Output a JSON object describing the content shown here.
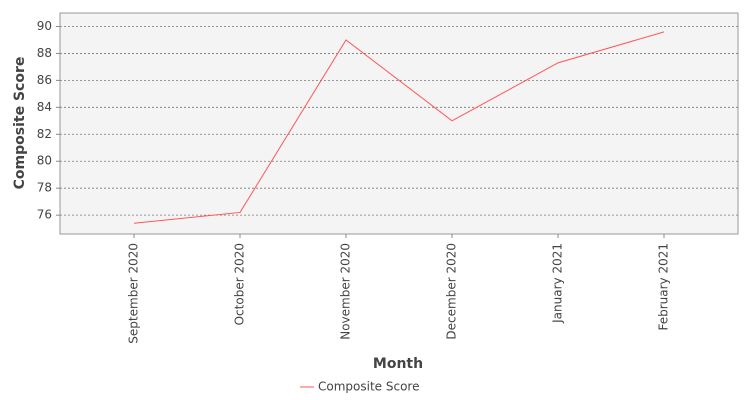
{
  "chart_data": {
    "type": "line",
    "x_label": "Month",
    "y_label": "Composite Score",
    "categories": [
      "September 2020",
      "October 2020",
      "November 2020",
      "December 2020",
      "January 2021",
      "February 2021"
    ],
    "series": [
      {
        "name": "Composite Score",
        "color": "#ff5555",
        "values": [
          75.4,
          76.2,
          89.0,
          83.0,
          87.3,
          89.6
        ]
      }
    ],
    "ylim": [
      74.6,
      91.0
    ],
    "yticks": [
      76,
      78,
      80,
      82,
      84,
      86,
      88,
      90
    ],
    "grid": true,
    "legend": "bottom"
  }
}
